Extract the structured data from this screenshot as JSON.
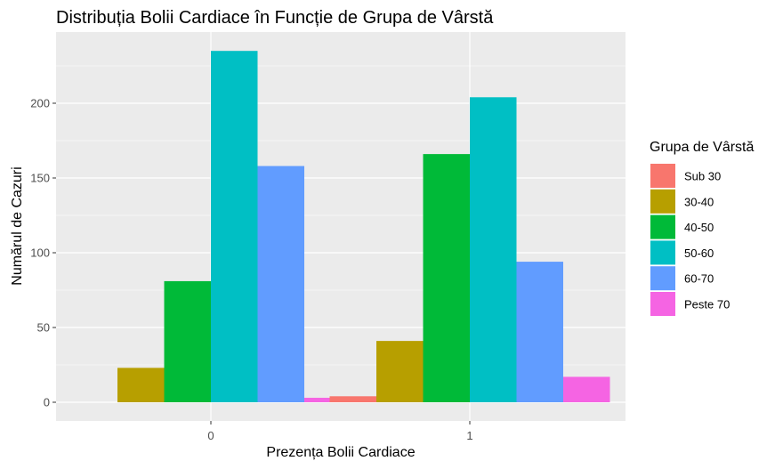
{
  "chart_data": {
    "type": "bar",
    "title": "Distribuția Bolii Cardiace în Funcție de Grupa de Vârstă",
    "xlabel": "Prezența Bolii Cardiace",
    "ylabel": "Numărul de Cazuri",
    "categories": [
      "0",
      "1"
    ],
    "ylim": [
      0,
      240
    ],
    "yticks": [
      0,
      50,
      100,
      150,
      200
    ],
    "grid": true,
    "legend_title": "Grupa de Vârstă",
    "legend_position": "right",
    "series": [
      {
        "name": "Sub 30",
        "color": "#F8766D",
        "values": [
          0,
          4
        ]
      },
      {
        "name": "30-40",
        "color": "#B79F00",
        "values": [
          23,
          41
        ]
      },
      {
        "name": "40-50",
        "color": "#00BA38",
        "values": [
          81,
          166
        ]
      },
      {
        "name": "50-60",
        "color": "#00BFC4",
        "values": [
          235,
          204
        ]
      },
      {
        "name": "60-70",
        "color": "#619CFF",
        "values": [
          158,
          94
        ]
      },
      {
        "name": "Peste 70",
        "color": "#F564E3",
        "values": [
          3,
          17
        ]
      }
    ],
    "colors": {
      "panel": "#EBEBEB",
      "grid": "#FFFFFF"
    }
  }
}
